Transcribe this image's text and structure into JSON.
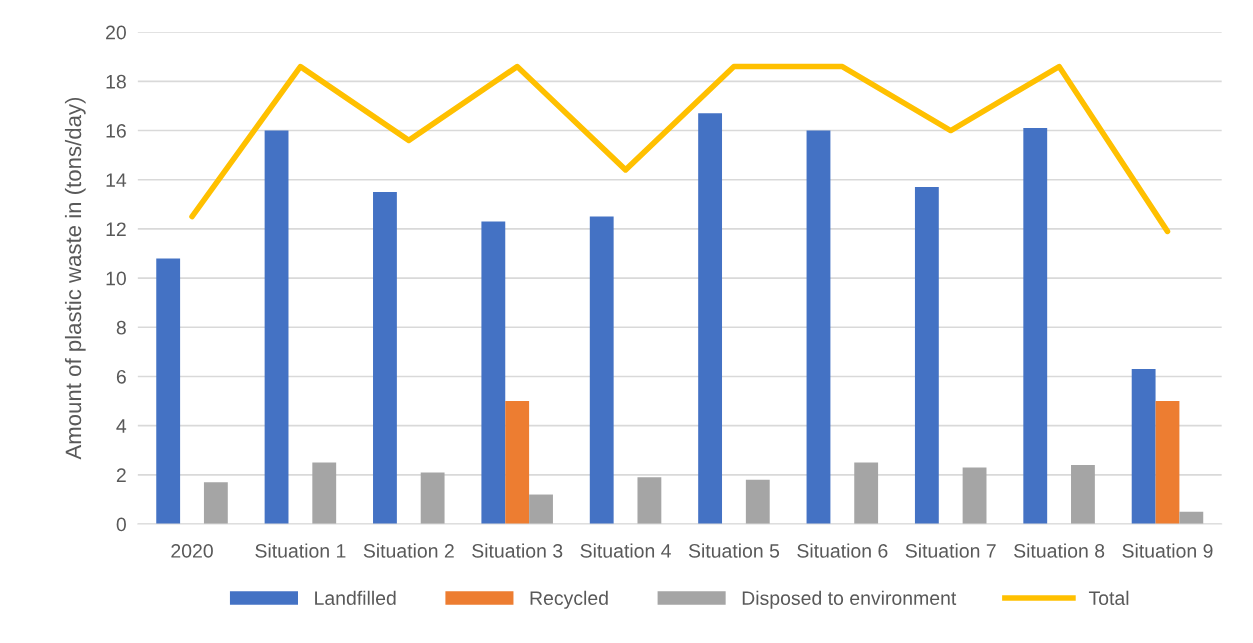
{
  "chart_data": {
    "type": "bar",
    "ylabel": "Amount of plastic waste in (tons/day)",
    "categories": [
      "2020",
      "Situation 1",
      "Situation 2",
      "Situation 3",
      "Situation 4",
      "Situation 5",
      "Situation 6",
      "Situation 7",
      "Situation 8",
      "Situation 9"
    ],
    "series": [
      {
        "name": "Landfilled",
        "color": "#4472c4",
        "values": [
          10.8,
          16.0,
          13.5,
          12.3,
          12.5,
          16.7,
          16.0,
          13.7,
          16.1,
          6.3
        ]
      },
      {
        "name": "Recycled",
        "color": "#ed7d31",
        "values": [
          0,
          0,
          0,
          5.0,
          0,
          0,
          0,
          0,
          0,
          5.0
        ]
      },
      {
        "name": "Disposed to environment",
        "color": "#a5a5a5",
        "values": [
          1.7,
          2.5,
          2.1,
          1.2,
          1.9,
          1.8,
          2.5,
          2.3,
          2.4,
          0.5
        ]
      },
      {
        "name": "Total",
        "color": "#ffc000",
        "type": "line",
        "values": [
          12.5,
          18.6,
          15.6,
          18.6,
          14.4,
          18.6,
          18.6,
          16.0,
          18.6,
          11.9
        ]
      }
    ],
    "ylim": [
      0,
      20
    ],
    "yticks": [
      0,
      2,
      4,
      6,
      8,
      10,
      12,
      14,
      16,
      18,
      20
    ],
    "grid": "y",
    "legend": "bottom"
  }
}
